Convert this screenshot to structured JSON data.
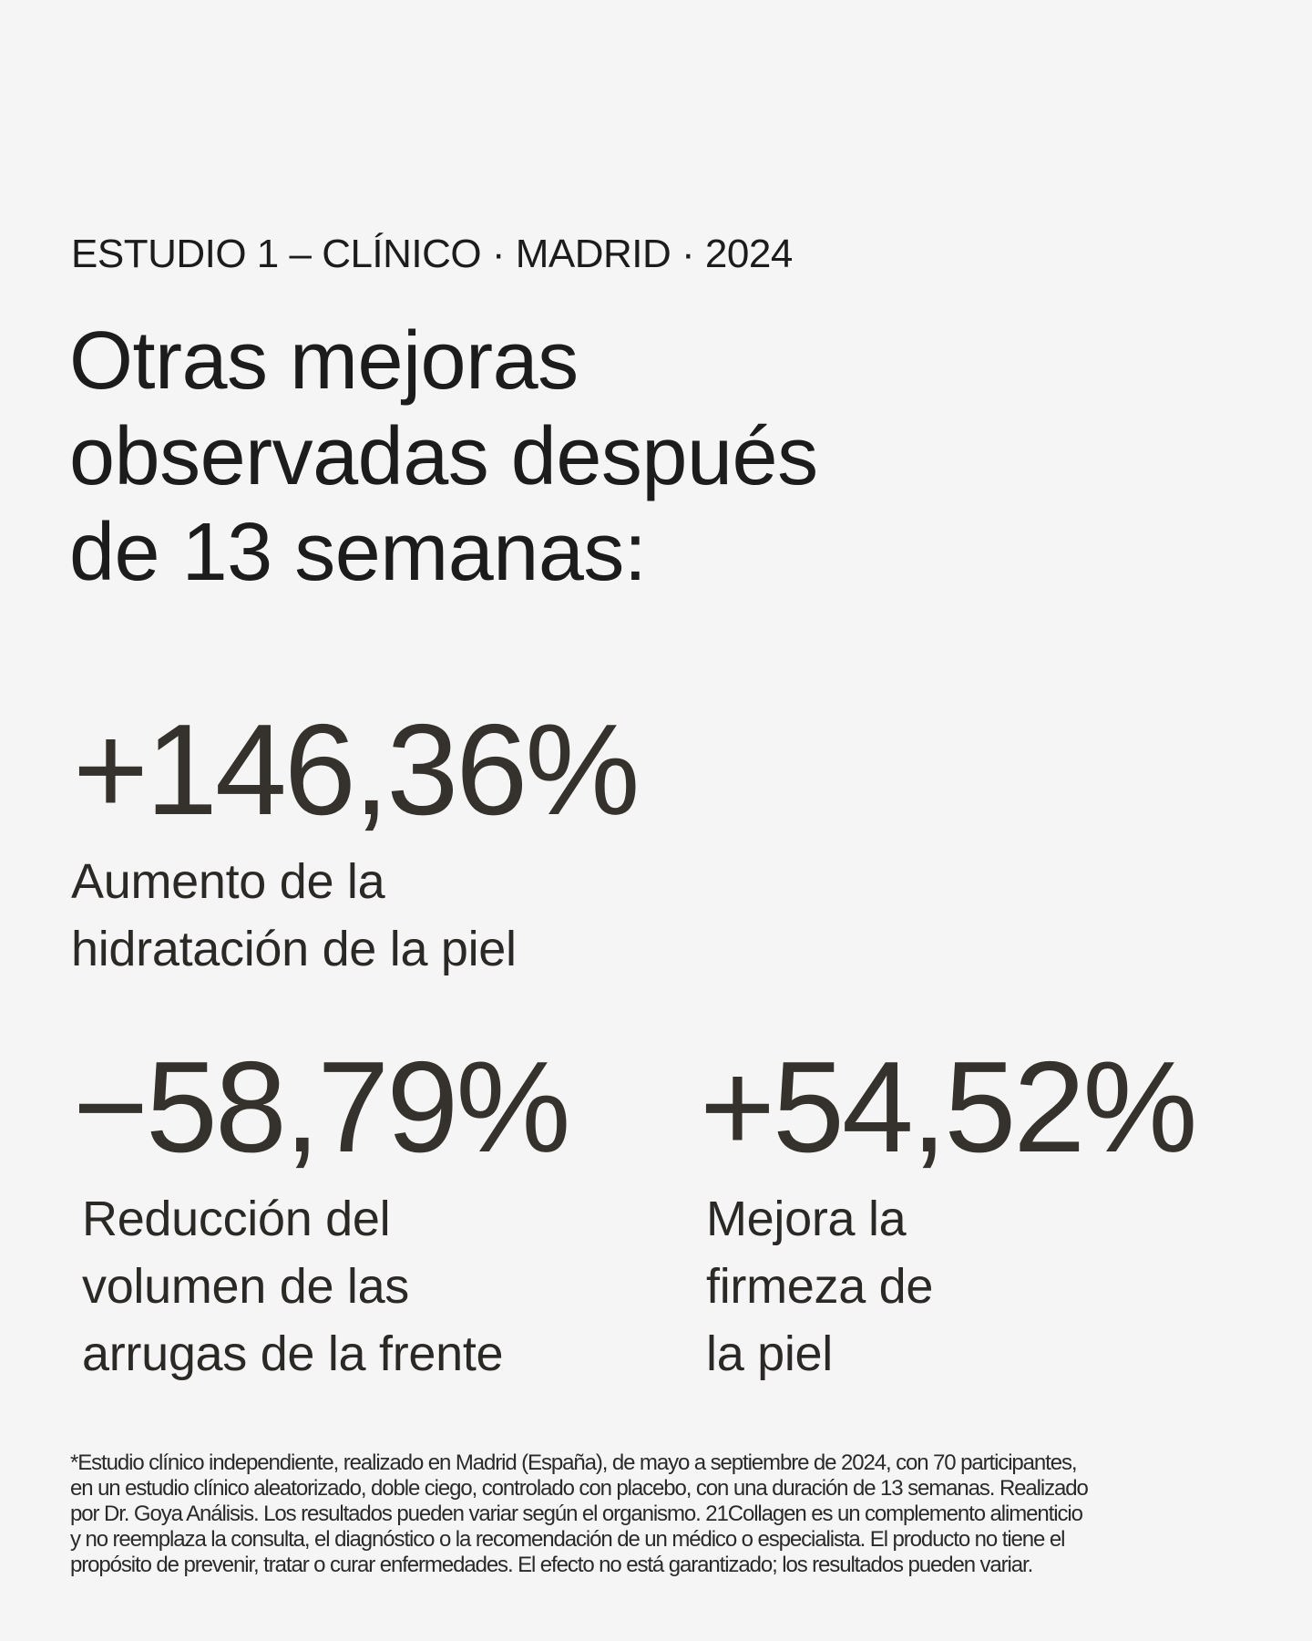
{
  "eyebrow": "ESTUDIO 1 – CLÍNICO · MADRID · 2024",
  "title_lines": [
    "Otras mejoras",
    "observadas después",
    "de 13 semanas:"
  ],
  "stats": [
    {
      "value": "+146,36%",
      "label_lines": [
        "Aumento de la",
        "hidratación de la piel"
      ]
    },
    {
      "value": "−58,79%",
      "label_lines": [
        "Reducción del",
        "volumen de las",
        "arrugas de la frente"
      ]
    },
    {
      "value": "+54,52%",
      "label_lines": [
        "Mejora la",
        "firmeza de",
        "la piel"
      ]
    }
  ],
  "footnote_lines": [
    "*Estudio clínico independiente, realizado en Madrid (España), de mayo a septiembre de 2024, con 70 participantes,",
    "en un estudio clínico aleatorizado, doble ciego, controlado con placebo, con una duración de 13 semanas. Realizado",
    "por Dr. Goya Análisis. Los resultados pueden variar según el organismo. 21Collagen es un complemento alimenticio",
    "y no reemplaza la consulta, el diagnóstico o la recomendación de un médico o especialista. El producto no tiene el",
    "propósito de prevenir, tratar o curar enfermedades. El efecto no está garantizado; los resultados pueden variar."
  ],
  "colors": {
    "background": "#f5f5f5",
    "stat": "#35312c",
    "text": "#1c1c1c"
  }
}
